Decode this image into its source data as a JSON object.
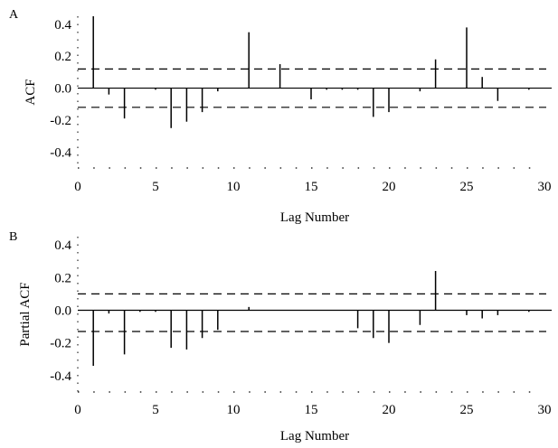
{
  "chart_data": [
    {
      "panel_label": "A",
      "type": "bar",
      "ylabel": "ACF",
      "xlabel": "Lag Number",
      "xlim": [
        0,
        30
      ],
      "ylim": [
        -0.5,
        0.45
      ],
      "x_ticks": [
        0,
        5,
        10,
        15,
        20,
        25,
        30
      ],
      "y_ticks": [
        0.4,
        0.2,
        0.0,
        -0.2,
        -0.4
      ],
      "y_tick_labels": [
        "0.4",
        "0.2",
        "0.0",
        "-0.2",
        "-0.4"
      ],
      "confidence_limits": [
        0.12,
        -0.12
      ],
      "lags": [
        1,
        2,
        3,
        4,
        5,
        6,
        7,
        8,
        9,
        10,
        11,
        12,
        13,
        14,
        15,
        16,
        17,
        18,
        19,
        20,
        21,
        22,
        23,
        24,
        25,
        26,
        27,
        28,
        29
      ],
      "values": [
        0.45,
        -0.04,
        -0.19,
        0.0,
        -0.01,
        -0.25,
        -0.21,
        -0.15,
        -0.02,
        0.0,
        0.35,
        0.0,
        0.15,
        0.0,
        -0.07,
        -0.01,
        -0.01,
        -0.01,
        -0.18,
        -0.15,
        0.0,
        -0.02,
        0.18,
        0.0,
        0.38,
        0.07,
        -0.08,
        0.0,
        -0.01
      ]
    },
    {
      "panel_label": "B",
      "type": "bar",
      "ylabel": "Partial ACF",
      "xlabel": "Lag Number",
      "xlim": [
        0,
        30
      ],
      "ylim": [
        -0.5,
        0.45
      ],
      "x_ticks": [
        0,
        5,
        10,
        15,
        20,
        25,
        30
      ],
      "y_ticks": [
        0.4,
        0.2,
        0.0,
        -0.2,
        -0.4
      ],
      "y_tick_labels": [
        "0.4",
        "0.2",
        "0.0",
        "-0.2",
        "-0.4"
      ],
      "confidence_limits": [
        0.1,
        -0.13
      ],
      "lags": [
        1,
        2,
        3,
        4,
        5,
        6,
        7,
        8,
        9,
        10,
        11,
        12,
        13,
        14,
        15,
        16,
        17,
        18,
        19,
        20,
        21,
        22,
        23,
        24,
        25,
        26,
        27,
        28,
        29
      ],
      "values": [
        -0.34,
        -0.02,
        -0.27,
        -0.01,
        -0.01,
        -0.23,
        -0.24,
        -0.17,
        -0.12,
        0.0,
        0.02,
        0.0,
        0.0,
        0.0,
        0.0,
        0.0,
        0.0,
        -0.11,
        -0.17,
        -0.2,
        0.0,
        -0.09,
        0.24,
        0.0,
        -0.03,
        -0.05,
        -0.03,
        0.0,
        -0.01
      ]
    }
  ]
}
